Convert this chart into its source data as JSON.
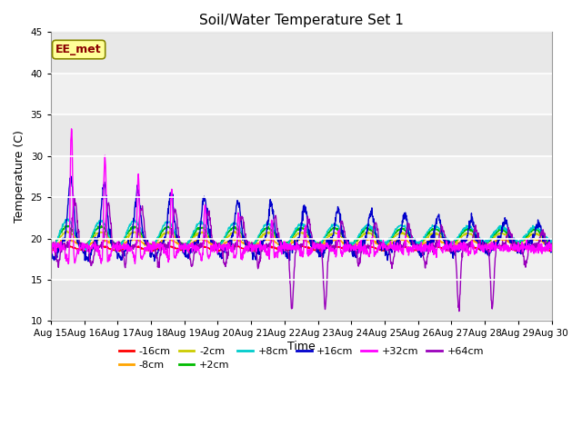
{
  "title": "Soil/Water Temperature Set 1",
  "xlabel": "Time",
  "ylabel": "Temperature (C)",
  "ylim": [
    10,
    45
  ],
  "yticks": [
    10,
    15,
    20,
    25,
    30,
    35,
    40,
    45
  ],
  "x_tick_labels": [
    "Aug 15",
    "Aug 16",
    "Aug 17",
    "Aug 18",
    "Aug 19",
    "Aug 20",
    "Aug 21",
    "Aug 22",
    "Aug 23",
    "Aug 24",
    "Aug 25",
    "Aug 26",
    "Aug 27",
    "Aug 28",
    "Aug 29",
    "Aug 30"
  ],
  "figsize": [
    6.4,
    4.8
  ],
  "dpi": 100,
  "watermark": "EE_met",
  "watermark_color": "#8B0000",
  "watermark_bg": "#FFFF99",
  "colors": {
    "-16cm": "#FF0000",
    "-8cm": "#FFA500",
    "-2cm": "#CCCC00",
    "+2cm": "#00BB00",
    "+8cm": "#00CCCC",
    "+16cm": "#0000CC",
    "+32cm": "#FF00FF",
    "+64cm": "#9900BB"
  }
}
